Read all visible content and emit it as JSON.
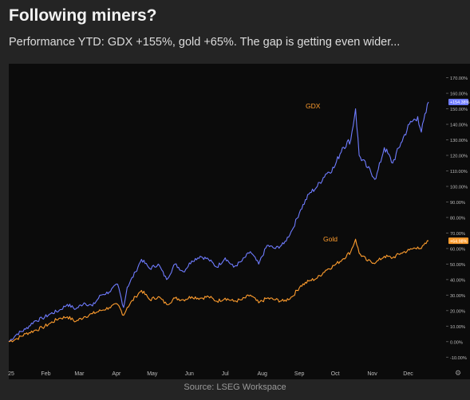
{
  "header": {
    "title": "Following miners?",
    "subtitle": "Performance YTD: GDX +155%, gold +65%. The gap is getting even wider..."
  },
  "footer": {
    "source": "Source: LSEG Workspace"
  },
  "colors": {
    "gdx": "#6f7cff",
    "gold": "#ff9d2e",
    "background": "#0b0b0b"
  },
  "chart_data": {
    "type": "line",
    "title": "",
    "xlabel": "",
    "ylabel": "",
    "x_ticks": [
      "25",
      "Feb",
      "Mar",
      "Apr",
      "May",
      "Jun",
      "Jul",
      "Aug",
      "Sep",
      "Oct",
      "Nov",
      "Dec"
    ],
    "y_ticks": [
      "-10.00%",
      "0.00%",
      "10.00%",
      "20.00%",
      "30.00%",
      "40.00%",
      "50.00%",
      "60.00%",
      "70.00%",
      "80.00%",
      "90.00%",
      "100.00%",
      "110.00%",
      "120.00%",
      "130.00%",
      "140.00%",
      "150.00%",
      "160.00%",
      "170.00%"
    ],
    "ylim": [
      -15,
      178
    ],
    "y_axis_unit": "%",
    "grid": false,
    "axis_icon": "settings-gear-icon",
    "series": [
      {
        "name": "GDX",
        "color": "#6f7cff",
        "last_value_label": "+154.38%",
        "points": [
          [
            "2025-01-01",
            0
          ],
          [
            "2025-01-08",
            5
          ],
          [
            "2025-01-15",
            8
          ],
          [
            "2025-01-22",
            13
          ],
          [
            "2025-01-29",
            15
          ],
          [
            "2025-02-05",
            18
          ],
          [
            "2025-02-12",
            20
          ],
          [
            "2025-02-19",
            24
          ],
          [
            "2025-02-26",
            21
          ],
          [
            "2025-03-05",
            25
          ],
          [
            "2025-03-12",
            23
          ],
          [
            "2025-03-19",
            30
          ],
          [
            "2025-03-26",
            32
          ],
          [
            "2025-04-02",
            37
          ],
          [
            "2025-04-07",
            22
          ],
          [
            "2025-04-10",
            35
          ],
          [
            "2025-04-17",
            45
          ],
          [
            "2025-04-22",
            53
          ],
          [
            "2025-04-29",
            47
          ],
          [
            "2025-05-06",
            50
          ],
          [
            "2025-05-13",
            40
          ],
          [
            "2025-05-20",
            50
          ],
          [
            "2025-05-27",
            45
          ],
          [
            "2025-06-03",
            52
          ],
          [
            "2025-06-10",
            55
          ],
          [
            "2025-06-17",
            53
          ],
          [
            "2025-06-24",
            48
          ],
          [
            "2025-07-01",
            54
          ],
          [
            "2025-07-08",
            48
          ],
          [
            "2025-07-15",
            52
          ],
          [
            "2025-07-22",
            58
          ],
          [
            "2025-07-29",
            50
          ],
          [
            "2025-08-05",
            62
          ],
          [
            "2025-08-12",
            60
          ],
          [
            "2025-08-19",
            63
          ],
          [
            "2025-08-26",
            72
          ],
          [
            "2025-09-02",
            85
          ],
          [
            "2025-09-09",
            95
          ],
          [
            "2025-09-16",
            100
          ],
          [
            "2025-09-23",
            108
          ],
          [
            "2025-09-30",
            112
          ],
          [
            "2025-10-07",
            125
          ],
          [
            "2025-10-14",
            130
          ],
          [
            "2025-10-18",
            150
          ],
          [
            "2025-10-21",
            120
          ],
          [
            "2025-10-28",
            112
          ],
          [
            "2025-11-04",
            105
          ],
          [
            "2025-11-11",
            125
          ],
          [
            "2025-11-18",
            115
          ],
          [
            "2025-11-25",
            128
          ],
          [
            "2025-12-02",
            140
          ],
          [
            "2025-12-09",
            145
          ],
          [
            "2025-12-12",
            135
          ],
          [
            "2025-12-18",
            154.38
          ]
        ]
      },
      {
        "name": "Gold",
        "color": "#ff9d2e",
        "last_value_label": "+64.98%",
        "points": [
          [
            "2025-01-01",
            0
          ],
          [
            "2025-01-08",
            2
          ],
          [
            "2025-01-15",
            5
          ],
          [
            "2025-01-22",
            7
          ],
          [
            "2025-01-29",
            9
          ],
          [
            "2025-02-05",
            12
          ],
          [
            "2025-02-12",
            15
          ],
          [
            "2025-02-19",
            16
          ],
          [
            "2025-02-26",
            13
          ],
          [
            "2025-03-05",
            16
          ],
          [
            "2025-03-12",
            18
          ],
          [
            "2025-03-19",
            20
          ],
          [
            "2025-03-26",
            22
          ],
          [
            "2025-04-02",
            24
          ],
          [
            "2025-04-07",
            17
          ],
          [
            "2025-04-10",
            22
          ],
          [
            "2025-04-17",
            29
          ],
          [
            "2025-04-22",
            33
          ],
          [
            "2025-04-29",
            27
          ],
          [
            "2025-05-06",
            29
          ],
          [
            "2025-05-13",
            24
          ],
          [
            "2025-05-20",
            28
          ],
          [
            "2025-05-27",
            27
          ],
          [
            "2025-06-03",
            29
          ],
          [
            "2025-06-10",
            28
          ],
          [
            "2025-06-17",
            29
          ],
          [
            "2025-06-24",
            26
          ],
          [
            "2025-07-01",
            28
          ],
          [
            "2025-07-08",
            26
          ],
          [
            "2025-07-15",
            27
          ],
          [
            "2025-07-22",
            30
          ],
          [
            "2025-07-29",
            25
          ],
          [
            "2025-08-05",
            28
          ],
          [
            "2025-08-12",
            27
          ],
          [
            "2025-08-19",
            26
          ],
          [
            "2025-08-26",
            29
          ],
          [
            "2025-09-02",
            36
          ],
          [
            "2025-09-09",
            39
          ],
          [
            "2025-09-16",
            41
          ],
          [
            "2025-09-23",
            46
          ],
          [
            "2025-09-30",
            49
          ],
          [
            "2025-10-07",
            53
          ],
          [
            "2025-10-14",
            58
          ],
          [
            "2025-10-18",
            66
          ],
          [
            "2025-10-21",
            57
          ],
          [
            "2025-10-28",
            52
          ],
          [
            "2025-11-04",
            51
          ],
          [
            "2025-11-11",
            55
          ],
          [
            "2025-11-18",
            54
          ],
          [
            "2025-11-25",
            57
          ],
          [
            "2025-12-02",
            59
          ],
          [
            "2025-12-09",
            61
          ],
          [
            "2025-12-12",
            60
          ],
          [
            "2025-12-18",
            64.98
          ]
        ]
      }
    ]
  }
}
